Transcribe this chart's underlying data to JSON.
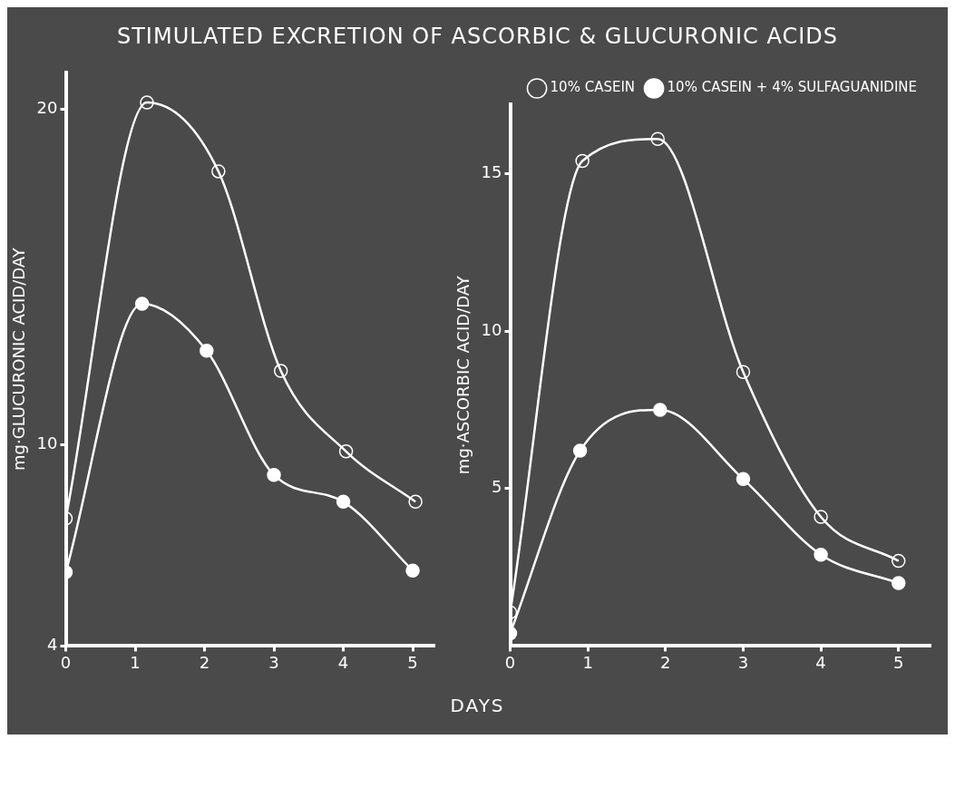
{
  "chart_data": [
    {
      "type": "line",
      "title": "STIMULATED EXCRETION OF ASCORBIC & GLUCURONIC ACIDS",
      "ylabel": "mg·GLUCURONIC ACID/DAY",
      "xlim": [
        0,
        5.3
      ],
      "xticks": [
        0,
        1,
        2,
        3,
        4,
        5
      ],
      "ylim": [
        4,
        21.1
      ],
      "yticks": [
        4,
        10,
        20
      ],
      "grid": false,
      "legend": false,
      "marker": "circle",
      "series": [
        {
          "color": "#ffffff",
          "x": [
            0,
            1.17,
            2.2,
            3.1,
            4.04,
            5.04
          ],
          "values": [
            7.8,
            20.2,
            18.15,
            12.2,
            9.8,
            8.3
          ]
        },
        {
          "color": "#ffffff",
          "x": [
            0,
            1.1,
            2.03,
            3,
            4,
            5
          ],
          "values": [
            6.2,
            14.2,
            12.8,
            9.1,
            8.3,
            6.25
          ]
        }
      ]
    },
    {
      "type": "line",
      "xlabel": "DAYS",
      "ylabel": "mg·ASCORBIC ACID/DAY",
      "xlim": [
        0,
        5.4
      ],
      "xticks": [
        0,
        1,
        2,
        3,
        4,
        5
      ],
      "ylim": [
        0,
        17.2
      ],
      "yticks": [
        5,
        10,
        15
      ],
      "grid": false,
      "legend": "top right",
      "marker": "circle",
      "series": [
        {
          "name": "10% CASEIN",
          "color": "#ffffff",
          "x": [
            0,
            0.93,
            1.9,
            3,
            4,
            5
          ],
          "values": [
            1.07,
            15.4,
            16.1,
            8.7,
            4.1,
            2.7
          ]
        },
        {
          "name": "10% CASEIN + 4% SULFAGUANIDINE",
          "color": "#ffffff",
          "x": [
            0,
            0.9,
            1.93,
            3,
            4,
            5
          ],
          "values": [
            0.4,
            6.2,
            7.5,
            5.3,
            2.9,
            2.0
          ]
        }
      ]
    }
  ]
}
